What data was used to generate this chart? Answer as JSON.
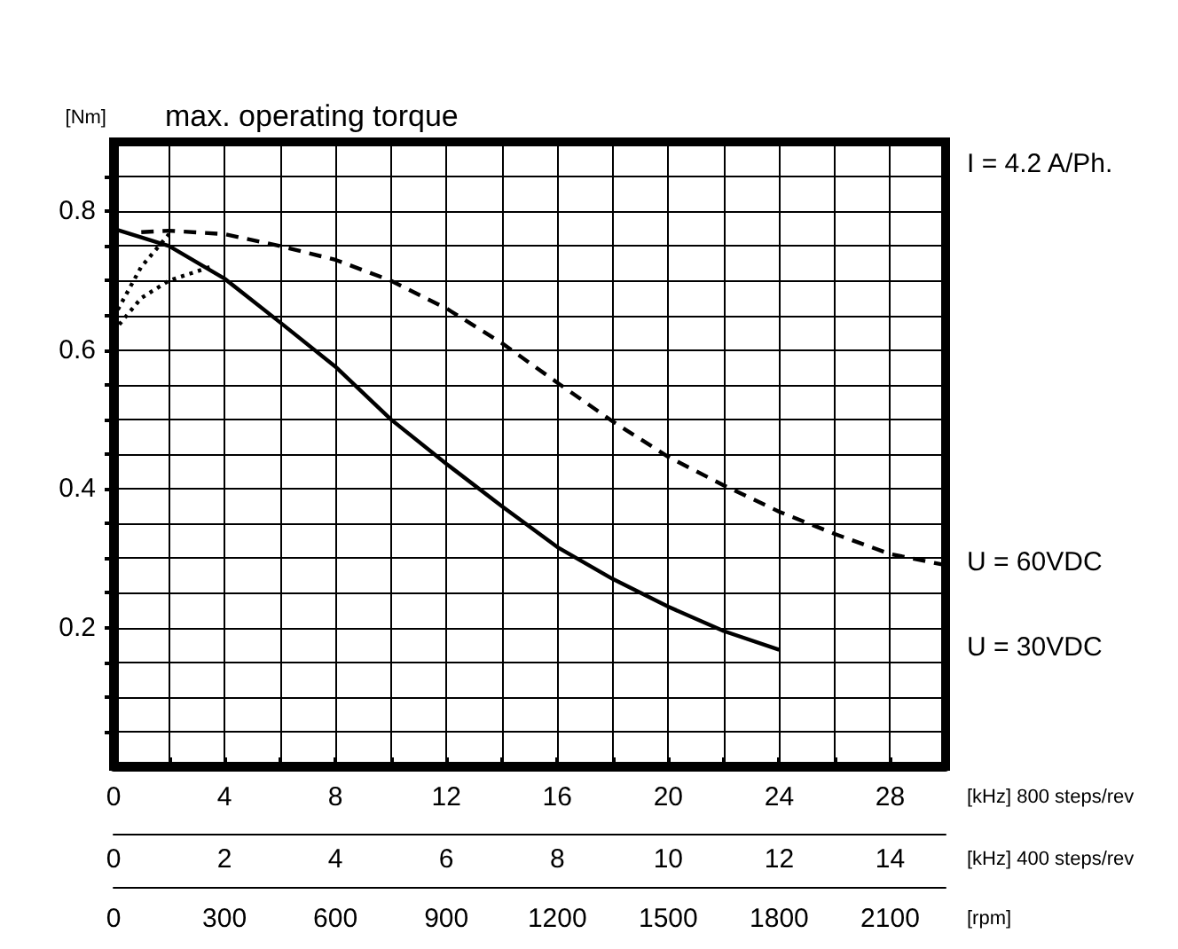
{
  "chart_data": {
    "type": "line",
    "title": "max. operating torque",
    "ylabel": "[Nm]",
    "xlabel": "[kHz] 800 steps/rev",
    "x2label": "[kHz] 400 steps/rev",
    "annotations": [
      "I = 4.2 A/Ph.",
      "0",
      "300",
      "600",
      "900",
      "1200",
      "1500",
      "1800",
      "2100",
      "[rpm]"
    ],
    "xlim": [
      0,
      30
    ],
    "ylim": [
      0,
      0.9
    ],
    "xticks": [
      0,
      {
        "value": 2,
        "label": null
      },
      4,
      {
        "value": 6,
        "label": null
      },
      8,
      {
        "value": 10,
        "label": null
      },
      12,
      {
        "value": 14,
        "label": null
      },
      16,
      {
        "value": 18,
        "label": null
      },
      20,
      {
        "value": 22,
        "label": null
      },
      24,
      {
        "value": 26,
        "label": null
      },
      28
    ],
    "x2lim": [
      0,
      15
    ],
    "x2ticks": [
      0,
      2,
      4,
      6,
      8,
      10,
      12,
      14
    ],
    "yticks": [
      {
        "value": 0.05,
        "label": null
      },
      {
        "value": 0.1,
        "label": null
      },
      {
        "value": 0.15,
        "label": null
      },
      0.2,
      {
        "value": 0.25,
        "label": null
      },
      {
        "value": 0.3,
        "label": null
      },
      {
        "value": 0.35,
        "label": null
      },
      0.4,
      {
        "value": 0.45,
        "label": null
      },
      {
        "value": 0.5,
        "label": null
      },
      {
        "value": 0.55,
        "label": null
      },
      0.6,
      {
        "value": 0.65,
        "label": null
      },
      {
        "value": 0.7,
        "label": null
      },
      {
        "value": 0.75,
        "label": null
      },
      0.8,
      {
        "value": 0.85,
        "label": null
      }
    ],
    "grid": true,
    "legend": false,
    "marker": "none",
    "series": [
      {
        "name": "U = 60VDC",
        "color": "#000000",
        "line_style": "dashed",
        "x": [
          1,
          2,
          4,
          6,
          8,
          10,
          12,
          14,
          16,
          18,
          20,
          22,
          24,
          26,
          28,
          30
        ],
        "values": [
          0.77,
          0.772,
          0.767,
          0.75,
          0.73,
          0.7,
          0.66,
          0.61,
          0.553,
          0.497,
          0.446,
          0.405,
          0.367,
          0.335,
          0.306,
          0.29
        ]
      },
      {
        "name": "U = 30VDC",
        "color": "#000000",
        "line_style": "solid",
        "x": [
          0,
          2,
          4,
          6,
          8,
          10,
          12,
          14,
          16,
          18,
          20,
          22,
          24
        ],
        "values": [
          0.775,
          0.75,
          0.703,
          0.64,
          0.576,
          0.5,
          0.436,
          0.375,
          0.316,
          0.27,
          0.23,
          0.195,
          0.168
        ]
      },
      {
        "color": "#000000",
        "line_style": "dotted",
        "x": [
          0,
          1,
          2
        ],
        "values": [
          0.647,
          0.72,
          0.767
        ]
      },
      {
        "color": "#000000",
        "line_style": "dotted",
        "x": [
          0,
          1,
          2,
          3.5
        ],
        "values": [
          0.627,
          0.675,
          0.7,
          0.72
        ]
      }
    ]
  }
}
